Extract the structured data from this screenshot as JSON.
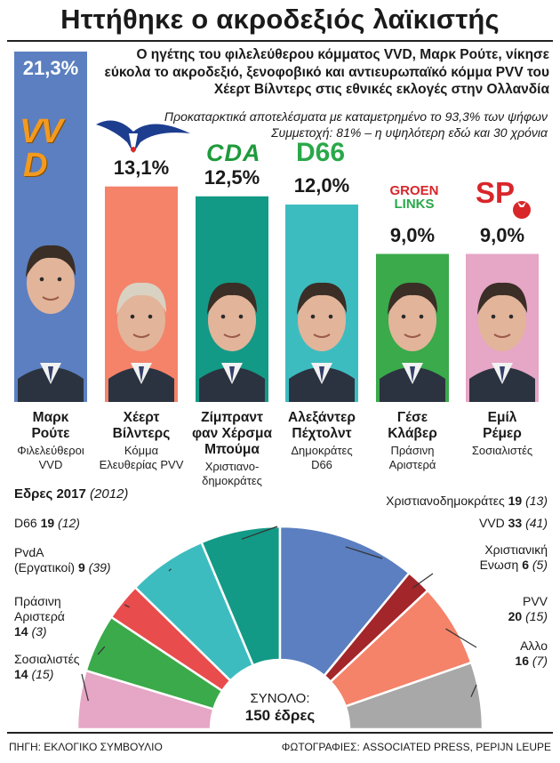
{
  "title": "Ηττήθηκε ο ακροδεξιός λαϊκιστής",
  "lead": "Ο ηγέτης του φιλελεύθερου κόμματος VVD, Μαρκ Ρούτε, νίκησε εύκολα το ακροδεξιό, ξενοφοβικό και αντιευρωπαϊκό κόμμα PVV του Χέερτ Βίλντερς στις εθνικές εκλογές στην Ολλανδία",
  "note1": "Προκαταρκτικά αποτελέσματα με καταμετρημένο το 93,3% των ψήφων",
  "note2": "Συμμετοχή: 81% – η υψηλότερη εδώ και 30 χρόνια",
  "chart_data": [
    {
      "type": "bar",
      "categories": [
        "Μαρκ Ρούτε",
        "Χέερτ Βίλντερς",
        "Ζίμπραντ φαν Χέρσμα Μπούμα",
        "Αλεξάντερ Πέχτολντ",
        "Γέσε Κλάβερ",
        "Εμίλ Ρέμερ"
      ],
      "values": [
        21.3,
        13.1,
        12.5,
        12.0,
        9.0,
        9.0
      ],
      "value_labels": [
        "21,3%",
        "13,1%",
        "12,5%",
        "12,0%",
        "9,0%",
        "9,0%"
      ],
      "leaders": [
        {
          "name1": "Μαρκ",
          "name2": "Ρούτε",
          "party1": "Φιλελεύθεροι",
          "party2": "VVD",
          "color": "#5b7fc0",
          "logo": "VVD"
        },
        {
          "name1": "Χέερτ",
          "name2": "Βίλντερς",
          "party1": "Κόμμα",
          "party2": "Ελευθερίας PVV",
          "color": "#f4836a",
          "logo": ""
        },
        {
          "name1": "Ζίμπραντ",
          "name2": "φαν Χέρσμα Μπούμα",
          "party1": "Χριστιανο-",
          "party2": "δημοκράτες",
          "color": "#139a86",
          "logo": "CDA"
        },
        {
          "name1": "Αλεξάντερ",
          "name2": "Πέχτολντ",
          "party1": "Δημοκράτες",
          "party2": "D66",
          "color": "#3dbcc0",
          "logo": "D66"
        },
        {
          "name1": "Γέσε",
          "name2": "Κλάβερ",
          "party1": "Πράσινη",
          "party2": "Αριστερά",
          "color": "#3aaa4a",
          "logo": "GROEN LINKS"
        },
        {
          "name1": "Εμίλ",
          "name2": "Ρέμερ",
          "party1": "Σοσιαλιστές",
          "party2": "",
          "color": "#e6a6c6",
          "logo": "SP"
        }
      ]
    },
    {
      "type": "pie",
      "title": "Εδρες 2017",
      "title_prev": "(2012)",
      "total_label": "ΣΥΝΟΛΟ:",
      "total_value": "150 έδρες",
      "segments": [
        {
          "name1": "Σοσιαλιστές",
          "name2": "",
          "seats": 14,
          "prev": 15,
          "color": "#e6a6c6"
        },
        {
          "name1": "Πράσινη",
          "name2": "Αριστερά",
          "seats": 14,
          "prev": 3,
          "color": "#3aaa4a"
        },
        {
          "name1": "PvdA",
          "name2": "(Εργατικοί)",
          "seats": 9,
          "prev": 39,
          "color": "#e84c4c"
        },
        {
          "name1": "D66",
          "name2": "",
          "seats": 19,
          "prev": 12,
          "color": "#3dbcc0"
        },
        {
          "name1": "Χριστιανοδημοκράτες",
          "name2": "",
          "seats": 19,
          "prev": 13,
          "color": "#139a86"
        },
        {
          "name1": "VVD",
          "name2": "",
          "seats": 33,
          "prev": 41,
          "color": "#5b7fc0"
        },
        {
          "name1": "Χριστιανική",
          "name2": "Ενωση",
          "seats": 6,
          "prev": 5,
          "color": "#a3262a"
        },
        {
          "name1": "PVV",
          "name2": "",
          "seats": 20,
          "prev": 15,
          "color": "#f4836a"
        },
        {
          "name1": "Αλλο",
          "name2": "",
          "seats": 16,
          "prev": 7,
          "color": "#a8a8a8"
        }
      ]
    }
  ],
  "source": "ΠΗΓΗ: ΕΚΛΟΓΙΚΟ ΣΥΜΒΟΥΛΙΟ",
  "photos": "ΦΩΤΟΓΡΑΦΙΕΣ: ASSOCIATED PRESS, PEPIJN LEUPE"
}
